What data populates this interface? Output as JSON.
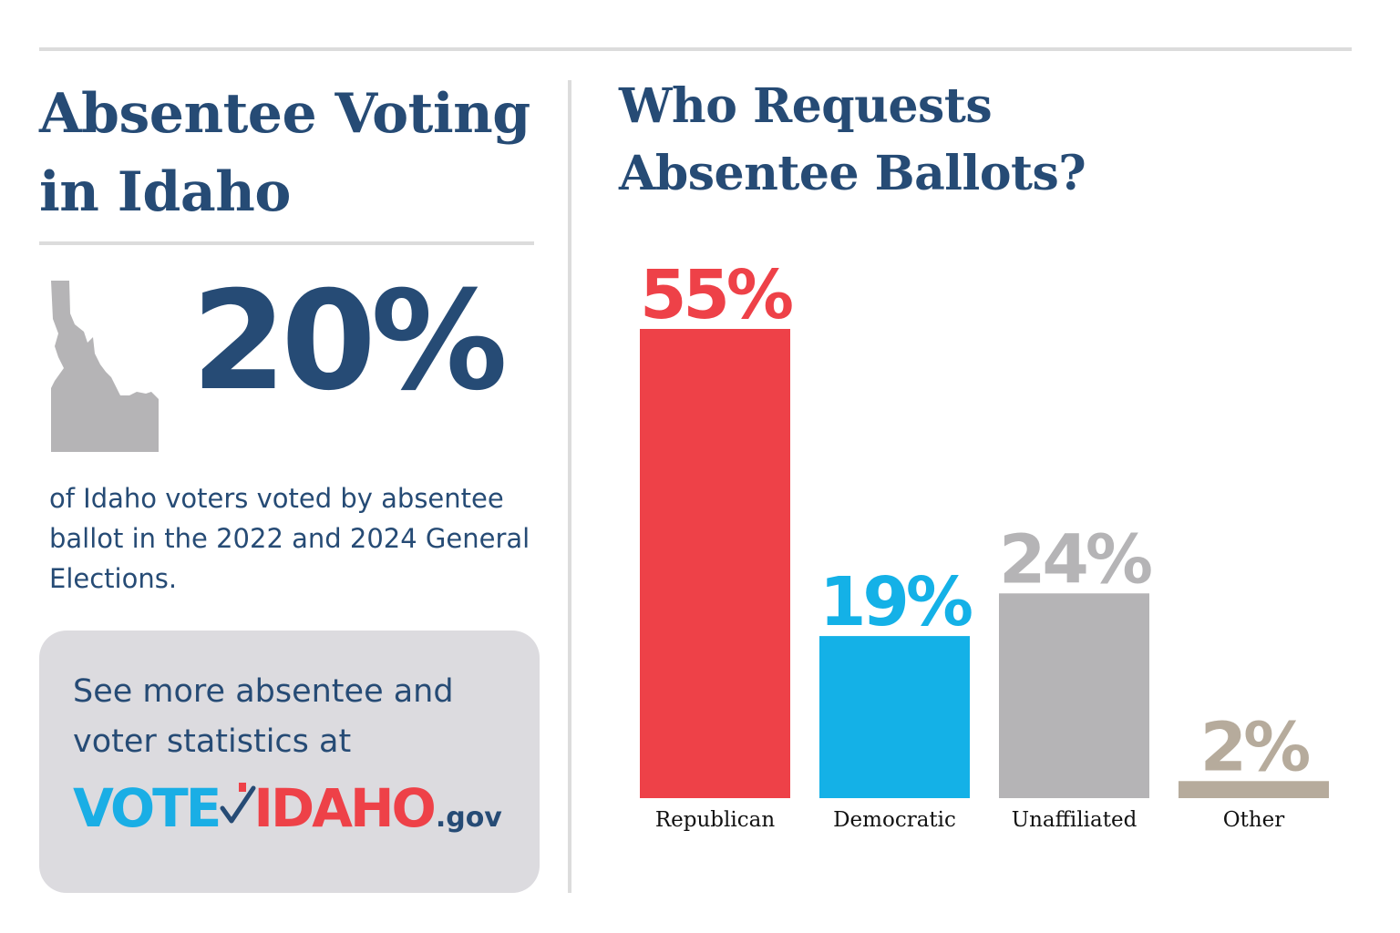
{
  "left_panel": {
    "title_line1": "Absentee Voting",
    "title_line2": "in Idaho",
    "stat_value": "20%",
    "stat_description": "of Idaho voters voted by absentee ballot in the 2022 and 2024 General Elections.",
    "map_icon": "idaho-state-silhouette",
    "cta_text": "See more absentee and voter statistics at",
    "logo": {
      "part1": "VOTE",
      "part2": "IDAHO",
      "suffix": ".gov",
      "alt": "VoteIdaho.gov"
    }
  },
  "chart_data": {
    "type": "bar",
    "title_line1": "Who Requests",
    "title_line2": "Absentee Ballots?",
    "categories": [
      "Republican",
      "Democratic",
      "Unaffiliated",
      "Other"
    ],
    "values": [
      55,
      19,
      24,
      2
    ],
    "value_labels": [
      "55%",
      "19%",
      "24%",
      "2%"
    ],
    "colors": [
      "#ee4148",
      "#14b1e7",
      "#b5b4b6",
      "#b6ab9c"
    ],
    "ylim": [
      0,
      55
    ],
    "grid": false,
    "legend": "none"
  },
  "colors": {
    "navy": "#264b75",
    "rule_gray": "#dcdcdc",
    "map_gray": "#b5b4b6",
    "box_gray": "#dcdbdf"
  }
}
